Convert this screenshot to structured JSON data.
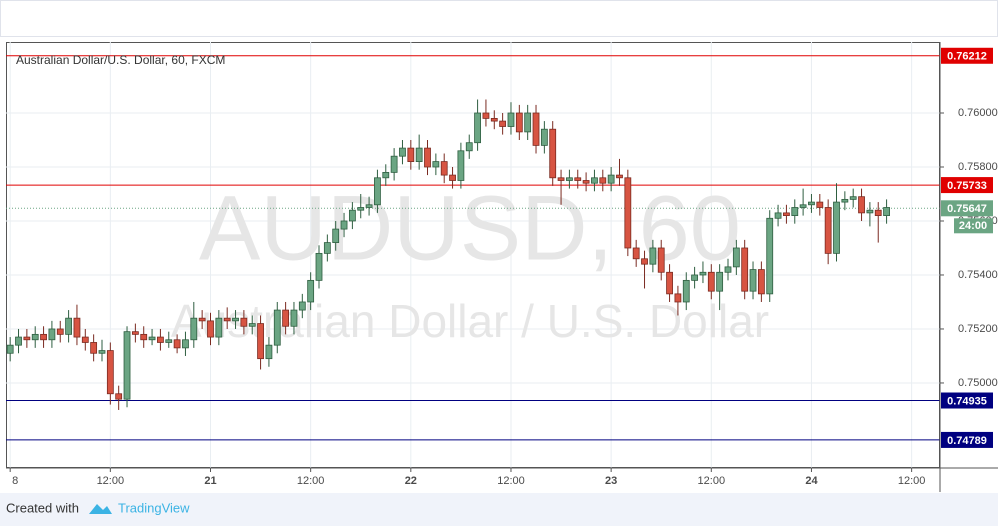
{
  "chart_data": {
    "type": "candlestick",
    "title": "Australian Dollar/U.S. Dollar, 60, FXCM",
    "watermark": "AUDUSD, 60",
    "watermark_subtitle": "Australian Dollar / U.S. Dollar",
    "up_color": "#6ba583",
    "down_color": "#d75442",
    "flat_color": "#999999",
    "grid": true,
    "ylim": [
      0.74685,
      0.76263
    ],
    "yticks": [
      {
        "value": 0.75,
        "label": "0.75000"
      },
      {
        "value": 0.752,
        "label": "0.75200"
      },
      {
        "value": 0.754,
        "label": "0.75400"
      },
      {
        "value": 0.756,
        "label": "0.75600"
      },
      {
        "value": 0.758,
        "label": "0.75800"
      },
      {
        "value": 0.76,
        "label": "0.76000"
      }
    ],
    "xlim": [
      -0.5,
      111.4
    ],
    "xticks": [
      {
        "value": 0,
        "label": "8"
      },
      {
        "value": 12,
        "label": "12:00"
      },
      {
        "value": 24,
        "label": "21"
      },
      {
        "value": 36,
        "label": "12:00"
      },
      {
        "value": 48,
        "label": "22"
      },
      {
        "value": 60,
        "label": "12:00"
      },
      {
        "value": 72,
        "label": "23"
      },
      {
        "value": 84,
        "label": "12:00"
      },
      {
        "value": 96,
        "label": "24"
      },
      {
        "value": 108,
        "label": "12:00"
      }
    ],
    "levels": [
      {
        "value": 0.76212,
        "color": "#e00000"
      },
      {
        "value": 0.75733,
        "color": "#e00000"
      },
      {
        "value": 0.74935,
        "color": "#000080"
      },
      {
        "value": 0.74789,
        "color": "#000080"
      }
    ],
    "last_price": {
      "value": 0.75647,
      "color": "#6ba583",
      "countdown": "24:00"
    },
    "ohlc": [
      [
        0.7511,
        0.7517,
        0.7508,
        0.7514
      ],
      [
        0.7514,
        0.752,
        0.7511,
        0.7517
      ],
      [
        0.7517,
        0.752,
        0.7513,
        0.7516
      ],
      [
        0.7516,
        0.7521,
        0.7513,
        0.7518
      ],
      [
        0.7518,
        0.7521,
        0.7513,
        0.7516
      ],
      [
        0.7516,
        0.7523,
        0.7513,
        0.752
      ],
      [
        0.752,
        0.7523,
        0.7515,
        0.7518
      ],
      [
        0.7518,
        0.7527,
        0.7515,
        0.7524
      ],
      [
        0.7524,
        0.7529,
        0.7514,
        0.7517
      ],
      [
        0.7517,
        0.752,
        0.7512,
        0.7515
      ],
      [
        0.7515,
        0.7518,
        0.7508,
        0.7511
      ],
      [
        0.7511,
        0.7516,
        0.7508,
        0.7512
      ],
      [
        0.7512,
        0.7515,
        0.7492,
        0.7496
      ],
      [
        0.7496,
        0.7499,
        0.749,
        0.7494
      ],
      [
        0.7494,
        0.7521,
        0.7491,
        0.7519
      ],
      [
        0.7519,
        0.7522,
        0.7515,
        0.7518
      ],
      [
        0.7518,
        0.7521,
        0.7513,
        0.7516
      ],
      [
        0.7516,
        0.752,
        0.7514,
        0.7517
      ],
      [
        0.7517,
        0.752,
        0.7512,
        0.7515
      ],
      [
        0.7515,
        0.7519,
        0.7513,
        0.7516
      ],
      [
        0.7516,
        0.7518,
        0.7511,
        0.7513
      ],
      [
        0.7513,
        0.7519,
        0.751,
        0.7516
      ],
      [
        0.7516,
        0.753,
        0.7513,
        0.7524
      ],
      [
        0.7524,
        0.7527,
        0.752,
        0.7523
      ],
      [
        0.7523,
        0.7526,
        0.7514,
        0.7517
      ],
      [
        0.7517,
        0.7527,
        0.7514,
        0.7524
      ],
      [
        0.7524,
        0.7528,
        0.752,
        0.7523
      ],
      [
        0.7523,
        0.7527,
        0.752,
        0.7524
      ],
      [
        0.7524,
        0.7527,
        0.7518,
        0.7521
      ],
      [
        0.7521,
        0.7525,
        0.7518,
        0.7522
      ],
      [
        0.7522,
        0.7525,
        0.7505,
        0.7509
      ],
      [
        0.7509,
        0.7517,
        0.7506,
        0.7514
      ],
      [
        0.7514,
        0.753,
        0.7511,
        0.7527
      ],
      [
        0.7527,
        0.753,
        0.7518,
        0.7521
      ],
      [
        0.7521,
        0.753,
        0.7518,
        0.7527
      ],
      [
        0.7527,
        0.7533,
        0.7524,
        0.753
      ],
      [
        0.753,
        0.7541,
        0.7527,
        0.7538
      ],
      [
        0.7538,
        0.7551,
        0.7535,
        0.7548
      ],
      [
        0.7548,
        0.7555,
        0.7545,
        0.7552
      ],
      [
        0.7552,
        0.756,
        0.7549,
        0.7557
      ],
      [
        0.7557,
        0.7563,
        0.7554,
        0.756
      ],
      [
        0.756,
        0.7567,
        0.7557,
        0.7564
      ],
      [
        0.7564,
        0.757,
        0.7561,
        0.7565
      ],
      [
        0.7565,
        0.7569,
        0.7562,
        0.7566
      ],
      [
        0.7566,
        0.7579,
        0.7563,
        0.7576
      ],
      [
        0.7576,
        0.7581,
        0.7573,
        0.7578
      ],
      [
        0.7578,
        0.7587,
        0.7575,
        0.7584
      ],
      [
        0.7584,
        0.759,
        0.7581,
        0.7587
      ],
      [
        0.7587,
        0.759,
        0.7579,
        0.7582
      ],
      [
        0.7582,
        0.7592,
        0.7579,
        0.7587
      ],
      [
        0.7587,
        0.759,
        0.7577,
        0.758
      ],
      [
        0.758,
        0.7585,
        0.7577,
        0.7582
      ],
      [
        0.7582,
        0.7585,
        0.7574,
        0.7577
      ],
      [
        0.7577,
        0.758,
        0.7572,
        0.7575
      ],
      [
        0.7575,
        0.7589,
        0.7572,
        0.7586
      ],
      [
        0.7586,
        0.7592,
        0.7583,
        0.7589
      ],
      [
        0.7589,
        0.7605,
        0.7586,
        0.76
      ],
      [
        0.76,
        0.7605,
        0.7595,
        0.7598
      ],
      [
        0.7598,
        0.7601,
        0.7594,
        0.7597
      ],
      [
        0.7597,
        0.76,
        0.7592,
        0.7595
      ],
      [
        0.7595,
        0.7604,
        0.7592,
        0.76
      ],
      [
        0.76,
        0.7603,
        0.759,
        0.7593
      ],
      [
        0.7593,
        0.7603,
        0.759,
        0.76
      ],
      [
        0.76,
        0.7603,
        0.7585,
        0.7588
      ],
      [
        0.7588,
        0.7597,
        0.7585,
        0.7594
      ],
      [
        0.7594,
        0.7597,
        0.7573,
        0.7576
      ],
      [
        0.7576,
        0.7579,
        0.7566,
        0.7575
      ],
      [
        0.7575,
        0.7579,
        0.7572,
        0.7576
      ],
      [
        0.7576,
        0.7579,
        0.7572,
        0.7575
      ],
      [
        0.7575,
        0.7578,
        0.7571,
        0.7574
      ],
      [
        0.7574,
        0.7579,
        0.7571,
        0.7576
      ],
      [
        0.7576,
        0.7579,
        0.7571,
        0.7574
      ],
      [
        0.7574,
        0.758,
        0.7571,
        0.7577
      ],
      [
        0.7577,
        0.7583,
        0.7573,
        0.7576
      ],
      [
        0.7576,
        0.7579,
        0.7547,
        0.755
      ],
      [
        0.755,
        0.7553,
        0.7543,
        0.7546
      ],
      [
        0.7546,
        0.7549,
        0.7535,
        0.7544
      ],
      [
        0.7544,
        0.7553,
        0.7541,
        0.755
      ],
      [
        0.755,
        0.7553,
        0.7538,
        0.7541
      ],
      [
        0.7541,
        0.7544,
        0.753,
        0.7533
      ],
      [
        0.7533,
        0.7536,
        0.7525,
        0.753
      ],
      [
        0.753,
        0.7541,
        0.7527,
        0.7538
      ],
      [
        0.7538,
        0.7543,
        0.7535,
        0.754
      ],
      [
        0.754,
        0.7545,
        0.7537,
        0.7541
      ],
      [
        0.7541,
        0.7544,
        0.7531,
        0.7534
      ],
      [
        0.7534,
        0.7544,
        0.7527,
        0.7541
      ],
      [
        0.7541,
        0.7546,
        0.7538,
        0.7543
      ],
      [
        0.7543,
        0.7553,
        0.754,
        0.755
      ],
      [
        0.755,
        0.7553,
        0.7531,
        0.7534
      ],
      [
        0.7534,
        0.7545,
        0.7531,
        0.7542
      ],
      [
        0.7542,
        0.7545,
        0.753,
        0.7533
      ],
      [
        0.7533,
        0.7564,
        0.753,
        0.7561
      ],
      [
        0.7561,
        0.7566,
        0.7558,
        0.7563
      ],
      [
        0.7563,
        0.7566,
        0.7559,
        0.7562
      ],
      [
        0.7562,
        0.7568,
        0.7559,
        0.7565
      ],
      [
        0.7565,
        0.7572,
        0.7562,
        0.7566
      ],
      [
        0.7566,
        0.757,
        0.7563,
        0.7567
      ],
      [
        0.7567,
        0.757,
        0.7562,
        0.7565
      ],
      [
        0.7565,
        0.7568,
        0.7544,
        0.7548
      ],
      [
        0.7548,
        0.7574,
        0.7545,
        0.7567
      ],
      [
        0.7567,
        0.7571,
        0.7564,
        0.7568
      ],
      [
        0.7568,
        0.7572,
        0.7565,
        0.7569
      ],
      [
        0.7569,
        0.7572,
        0.756,
        0.7563
      ],
      [
        0.7563,
        0.7567,
        0.7558,
        0.7564
      ],
      [
        0.7564,
        0.7567,
        0.7552,
        0.7562
      ],
      [
        0.7562,
        0.7568,
        0.7559,
        0.7565
      ]
    ]
  },
  "footer": {
    "created_with": "Created with",
    "brand": "TradingView"
  }
}
